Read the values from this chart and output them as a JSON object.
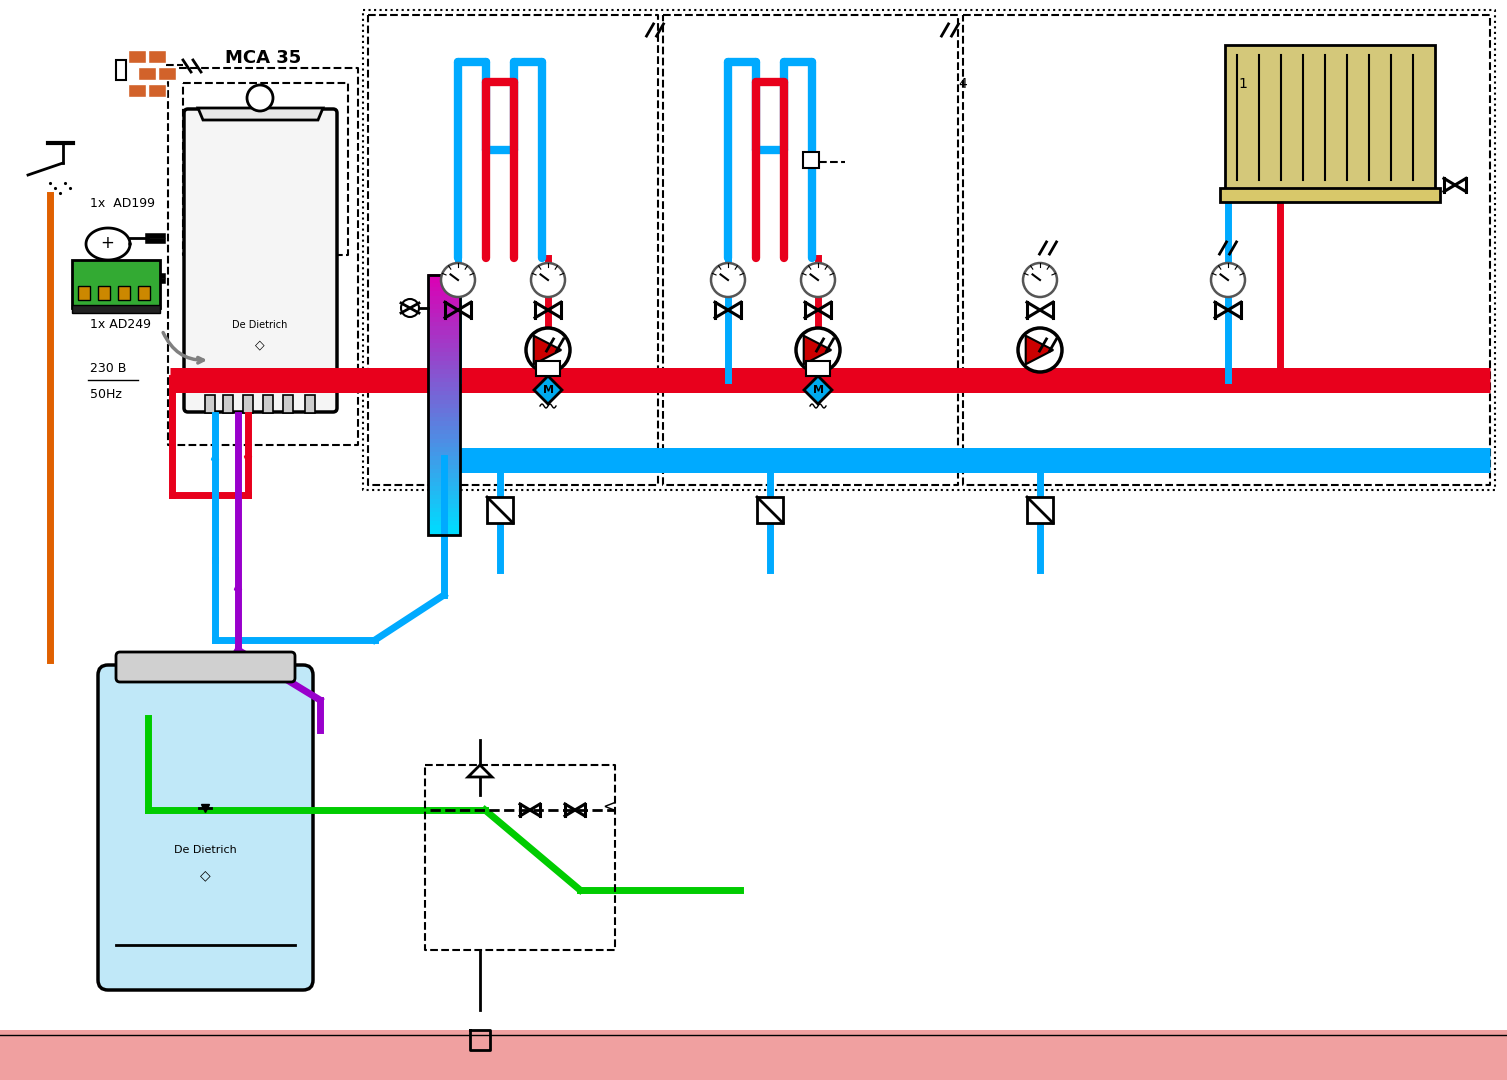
{
  "bg_color": "#ffffff",
  "boiler_label": "MCA 35",
  "text_ad199": "1x  AD199",
  "text_ad249": "1x AD249",
  "text_plus": "+",
  "text_230v": "230 B",
  "text_50hz": "50Hz",
  "colors": {
    "red": "#e8001c",
    "blue": "#00aaff",
    "orange": "#e06000",
    "purple": "#9900cc",
    "green": "#00cc00",
    "black": "#000000",
    "gray": "#888888",
    "light_blue_tank": "#c0e8f8",
    "radiator_fill": "#d4c87a",
    "brick_orange": "#d2622a",
    "pcb_green": "#33aa33",
    "pink_floor": "#f0a0a0"
  }
}
